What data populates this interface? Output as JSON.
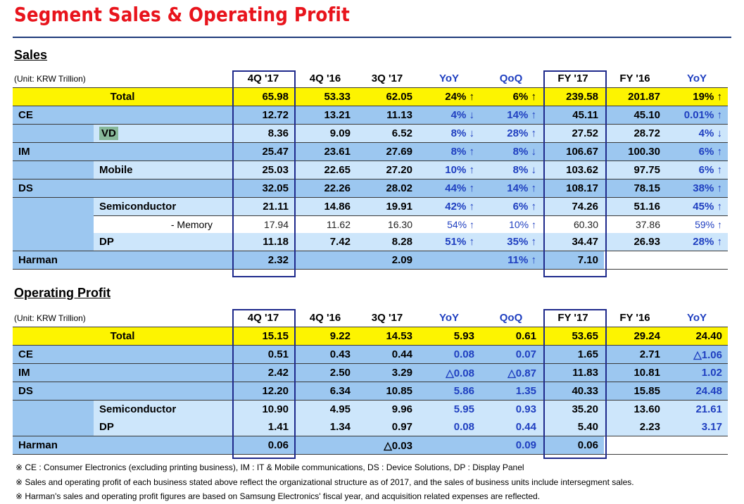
{
  "title": "Segment Sales & Operating Profit",
  "sales": {
    "heading": "Sales",
    "unit": "(Unit: KRW Trillion)",
    "columns": [
      "4Q '17",
      "4Q '16",
      "3Q '17",
      "YoY",
      "QoQ",
      "FY '17",
      "FY '16",
      "YoY"
    ],
    "rows": [
      {
        "label": "Total",
        "v": [
          "65.98",
          "53.33",
          "62.05",
          "24% ↑",
          "6% ↑",
          "239.58",
          "201.87",
          "19% ↑"
        ]
      },
      {
        "label": "CE",
        "v": [
          "12.72",
          "13.21",
          "11.13",
          "4% ↓",
          "14% ↑",
          "45.11",
          "45.10",
          "0.01% ↑"
        ]
      },
      {
        "label": "VD",
        "v": [
          "8.36",
          "9.09",
          "6.52",
          "8% ↓",
          "28% ↑",
          "27.52",
          "28.72",
          "4% ↓"
        ]
      },
      {
        "label": "IM",
        "v": [
          "25.47",
          "23.61",
          "27.69",
          "8% ↑",
          "8% ↓",
          "106.67",
          "100.30",
          "6% ↑"
        ]
      },
      {
        "label": "Mobile",
        "v": [
          "25.03",
          "22.65",
          "27.20",
          "10% ↑",
          "8% ↓",
          "103.62",
          "97.75",
          "6% ↑"
        ]
      },
      {
        "label": "DS",
        "v": [
          "32.05",
          "22.26",
          "28.02",
          "44% ↑",
          "14% ↑",
          "108.17",
          "78.15",
          "38% ↑"
        ]
      },
      {
        "label": "Semiconductor",
        "v": [
          "21.11",
          "14.86",
          "19.91",
          "42% ↑",
          "6% ↑",
          "74.26",
          "51.16",
          "45% ↑"
        ]
      },
      {
        "label": "- Memory",
        "v": [
          "17.94",
          "11.62",
          "16.30",
          "54% ↑",
          "10% ↑",
          "60.30",
          "37.86",
          "59% ↑"
        ]
      },
      {
        "label": "DP",
        "v": [
          "11.18",
          "7.42",
          "8.28",
          "51% ↑",
          "35% ↑",
          "34.47",
          "26.93",
          "28% ↑"
        ]
      },
      {
        "label": "Harman",
        "v": [
          "2.32",
          "",
          "2.09",
          "",
          "11% ↑",
          "7.10",
          "",
          ""
        ]
      }
    ]
  },
  "op": {
    "heading": "Operating Profit",
    "unit": "(Unit: KRW Trillion)",
    "columns": [
      "4Q '17",
      "4Q '16",
      "3Q '17",
      "YoY",
      "QoQ",
      "FY '17",
      "FY '16",
      "YoY"
    ],
    "rows": [
      {
        "label": "Total",
        "v": [
          "15.15",
          "9.22",
          "14.53",
          "5.93",
          "0.61",
          "53.65",
          "29.24",
          "24.40"
        ]
      },
      {
        "label": "CE",
        "v": [
          "0.51",
          "0.43",
          "0.44",
          "0.08",
          "0.07",
          "1.65",
          "2.71",
          "△1.06"
        ]
      },
      {
        "label": "IM",
        "v": [
          "2.42",
          "2.50",
          "3.29",
          "△0.08",
          "△0.87",
          "11.83",
          "10.81",
          "1.02"
        ]
      },
      {
        "label": "DS",
        "v": [
          "12.20",
          "6.34",
          "10.85",
          "5.86",
          "1.35",
          "40.33",
          "15.85",
          "24.48"
        ]
      },
      {
        "label": "Semiconductor",
        "v": [
          "10.90",
          "4.95",
          "9.96",
          "5.95",
          "0.93",
          "35.20",
          "13.60",
          "21.61"
        ]
      },
      {
        "label": "DP",
        "v": [
          "1.41",
          "1.34",
          "0.97",
          "0.08",
          "0.44",
          "5.40",
          "2.23",
          "3.17"
        ]
      },
      {
        "label": "Harman",
        "v": [
          "0.06",
          "",
          "△0.03",
          "",
          "0.09",
          "0.06",
          "",
          ""
        ]
      }
    ]
  },
  "notes": [
    "※ CE : Consumer Electronics (excluding printing business),  IM : IT & Mobile communications,  DS : Device Solutions,  DP : Display Panel",
    "※ Sales and operating profit of each business stated above reflect the organizational structure  as of 2017, and the sales of business units include intersegment sales.",
    "※ Harman's sales and operating profit figures are based on Samsung Electronics' fiscal year, and acquisition related expenses are reflected."
  ],
  "colors": {
    "title": "#e8141c",
    "total_row": "#fdf400",
    "dark_row": "#9cc7f0",
    "light_row": "#cde6fb",
    "accent_text": "#1f3fc0",
    "frame": "#1f2a8c"
  }
}
